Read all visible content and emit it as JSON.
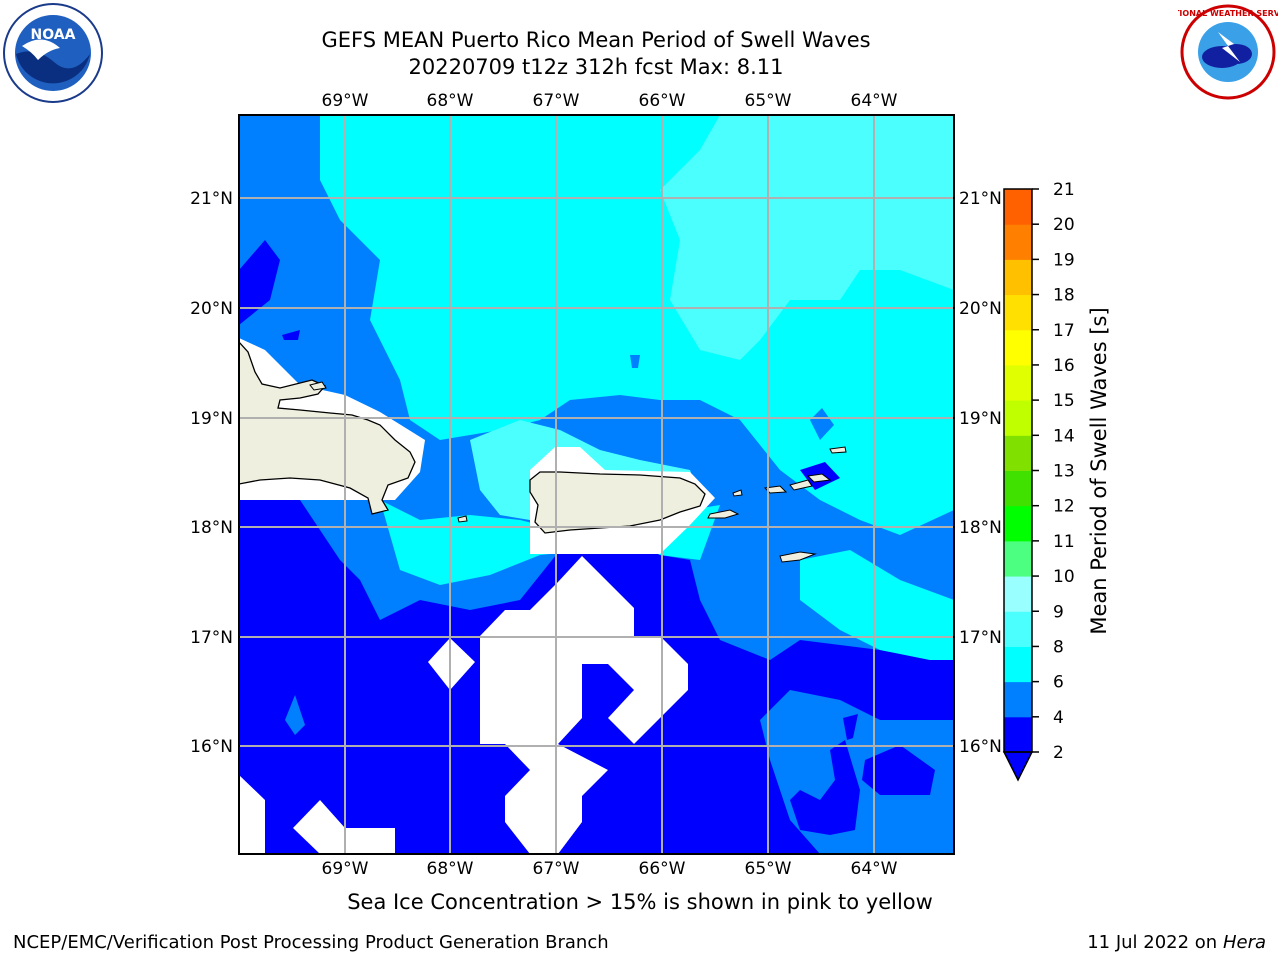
{
  "title": {
    "line1": "GEFS MEAN Puerto Rico Mean Period of Swell Waves",
    "line2": "20220709 t12z 312h fcst   Max: 8.11"
  },
  "map": {
    "lon_ticks": [
      "69°W",
      "68°W",
      "67°W",
      "66°W",
      "65°W",
      "64°W"
    ],
    "lat_ticks": [
      "21°N",
      "20°N",
      "19°N",
      "18°N",
      "17°N",
      "16°N"
    ],
    "colors": {
      "land": "#efefe0",
      "masked": "#ffffff",
      "c2_4": "#0000ff",
      "c4_6": "#0080ff",
      "c6_8": "#00ffff",
      "c8_9": "#4cffff",
      "grid": "#b0b0b0"
    }
  },
  "colorbar": {
    "label": "Mean Period of Swell Waves [s]",
    "ticks": [
      "2",
      "4",
      "6",
      "8",
      "9",
      "10",
      "11",
      "12",
      "13",
      "14",
      "15",
      "16",
      "17",
      "18",
      "19",
      "20",
      "21"
    ],
    "colors": [
      "#0000ff",
      "#0080ff",
      "#00ffff",
      "#4cffff",
      "#99ffff",
      "#4cff80",
      "#00ff00",
      "#40e000",
      "#80e000",
      "#c0ff00",
      "#e0ff00",
      "#ffff00",
      "#ffe000",
      "#ffc000",
      "#ff8000",
      "#ff6000",
      "#ff3000",
      "#ff0000"
    ]
  },
  "note": "Sea Ice Concentration > 15% is shown in pink to yellow",
  "footer": {
    "left": "NCEP/EMC/Verification Post Processing Product Generation Branch",
    "date": "11 Jul 2022 on ",
    "host": "Hera"
  },
  "logos": {
    "noaa_text": "NOAA",
    "nws_text": "NATIONAL WEATHER SERVICE"
  }
}
